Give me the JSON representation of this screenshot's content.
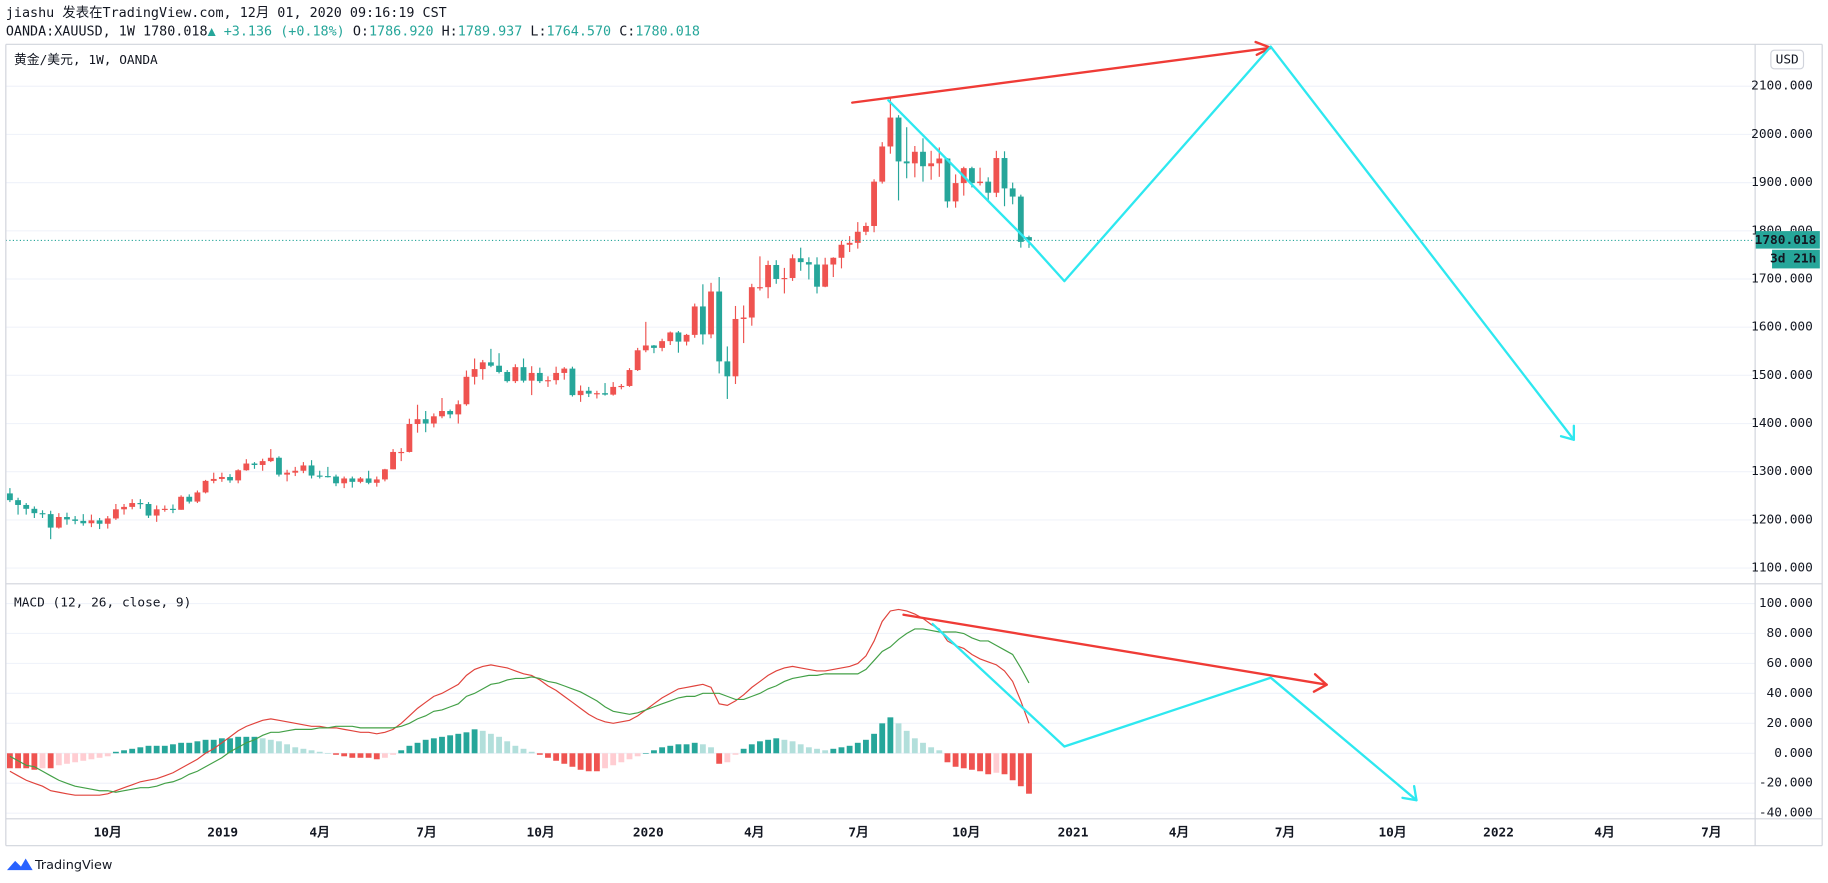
{
  "header": {
    "byline": "jiashu 发表在TradingView.com, 12月 01, 2020 09:16:19 CST",
    "quote": {
      "symbol": "OANDA:XAUUSD, 1W",
      "last": "1780.018",
      "change": "▲ +3.136 (+0.18%)",
      "ohlc": [
        {
          "label": "O:",
          "value": "1786.920"
        },
        {
          "label": "H:",
          "value": "1789.937"
        },
        {
          "label": "L:",
          "value": "1764.570"
        },
        {
          "label": "C:",
          "value": "1780.018"
        }
      ]
    },
    "brand": "TradingView"
  },
  "chart_data": [
    {
      "type": "candlestick",
      "title": "黄金/美元, 1W, OANDA",
      "currency": "USD",
      "countdown": "3d 21h",
      "up_color": "#ef5350",
      "down_color": "#26a69a",
      "grid": true,
      "xlim": [
        -0.5,
        214
      ],
      "ylim": [
        1071,
        2187
      ],
      "yticks": [
        {
          "value": 1100,
          "label": "1100.000"
        },
        {
          "value": 1200,
          "label": "1200.000"
        },
        {
          "value": 1300,
          "label": "1300.000"
        },
        {
          "value": 1400,
          "label": "1400.000"
        },
        {
          "value": 1500,
          "label": "1500.000"
        },
        {
          "value": 1600,
          "label": "1600.000"
        },
        {
          "value": 1700,
          "label": "1700.000"
        },
        {
          "value": 1800,
          "label": "1800.000"
        },
        {
          "value": 1900,
          "label": "1900.000"
        },
        {
          "value": 2000,
          "label": "2000.000"
        },
        {
          "value": 2100,
          "label": "2100.000"
        }
      ],
      "open": [
        1255,
        1241,
        1231,
        1223,
        1214,
        1212,
        1184,
        1206,
        1201,
        1198,
        1193,
        1199,
        1192,
        1203,
        1222,
        1227,
        1235,
        1233,
        1209,
        1222,
        1223,
        1221,
        1248,
        1238,
        1257,
        1281,
        1285,
        1289,
        1282,
        1303,
        1317,
        1314,
        1322,
        1329,
        1294,
        1298,
        1302,
        1313,
        1292,
        1291,
        1290,
        1276,
        1286,
        1279,
        1286,
        1277,
        1284,
        1305,
        1341,
        1341,
        1399,
        1409,
        1400,
        1415,
        1426,
        1419,
        1440,
        1497,
        1513,
        1527,
        1520,
        1507,
        1488,
        1517,
        1489,
        1505,
        1488,
        1490,
        1505,
        1514,
        1459,
        1468,
        1462,
        1463,
        1460,
        1476,
        1478,
        1511,
        1552,
        1562,
        1557,
        1571,
        1589,
        1570,
        1584,
        1643,
        1585,
        1674,
        1529,
        1498,
        1617,
        1620,
        1683,
        1683,
        1729,
        1700,
        1702,
        1743,
        1735,
        1730,
        1684,
        1730,
        1744,
        1771,
        1775,
        1798,
        1810,
        1902,
        1975,
        2035,
        1944,
        1940,
        1964,
        1934,
        1940,
        1950,
        1861,
        1899,
        1930,
        1899,
        1902,
        1879,
        1951,
        1888,
        1871,
        1786.92
      ],
      "high": [
        1266,
        1246,
        1235,
        1228,
        1220,
        1219,
        1214,
        1215,
        1208,
        1212,
        1211,
        1204,
        1208,
        1233,
        1233,
        1243,
        1243,
        1237,
        1230,
        1230,
        1232,
        1251,
        1253,
        1261,
        1283,
        1298,
        1298,
        1295,
        1305,
        1326,
        1320,
        1327,
        1347,
        1332,
        1304,
        1310,
        1320,
        1324,
        1302,
        1310,
        1294,
        1290,
        1290,
        1289,
        1302,
        1290,
        1306,
        1347,
        1349,
        1410,
        1439,
        1426,
        1421,
        1453,
        1429,
        1448,
        1510,
        1535,
        1532,
        1555,
        1546,
        1511,
        1523,
        1535,
        1519,
        1516,
        1498,
        1518,
        1517,
        1518,
        1479,
        1476,
        1468,
        1484,
        1486,
        1482,
        1515,
        1557,
        1611,
        1563,
        1576,
        1591,
        1592,
        1586,
        1649,
        1689,
        1692,
        1704,
        1560,
        1644,
        1645,
        1690,
        1747,
        1738,
        1739,
        1723,
        1751,
        1765,
        1745,
        1745,
        1744,
        1745,
        1779,
        1789,
        1818,
        1817,
        1907,
        1984,
        2075,
        2040,
        2015,
        1976,
        1992,
        1966,
        1973,
        1951,
        1917,
        1933,
        1933,
        1931,
        1911,
        1966,
        1965,
        1900,
        1875,
        1789.937
      ],
      "low": [
        1237,
        1211,
        1211,
        1204,
        1204,
        1160,
        1182,
        1190,
        1191,
        1188,
        1185,
        1181,
        1182,
        1200,
        1211,
        1222,
        1223,
        1204,
        1196,
        1217,
        1214,
        1221,
        1234,
        1235,
        1255,
        1276,
        1279,
        1277,
        1276,
        1302,
        1306,
        1302,
        1320,
        1290,
        1280,
        1291,
        1297,
        1286,
        1286,
        1288,
        1270,
        1266,
        1267,
        1276,
        1274,
        1269,
        1280,
        1305,
        1322,
        1340,
        1381,
        1382,
        1392,
        1411,
        1411,
        1400,
        1437,
        1481,
        1491,
        1517,
        1504,
        1485,
        1484,
        1485,
        1459,
        1484,
        1476,
        1481,
        1491,
        1456,
        1445,
        1455,
        1452,
        1458,
        1458,
        1471,
        1476,
        1509,
        1548,
        1546,
        1550,
        1563,
        1547,
        1562,
        1578,
        1564,
        1577,
        1504,
        1451,
        1482,
        1567,
        1603,
        1676,
        1660,
        1690,
        1670,
        1696,
        1717,
        1699,
        1670,
        1683,
        1704,
        1722,
        1756,
        1763,
        1791,
        1797,
        1898,
        1960,
        1863,
        1909,
        1911,
        1902,
        1906,
        1912,
        1848,
        1848,
        1873,
        1890,
        1894,
        1860,
        1870,
        1851,
        1855,
        1765,
        1764.57
      ],
      "close": [
        1241,
        1231,
        1223,
        1214,
        1212,
        1184,
        1206,
        1201,
        1198,
        1193,
        1199,
        1192,
        1203,
        1222,
        1227,
        1235,
        1233,
        1209,
        1222,
        1223,
        1221,
        1248,
        1238,
        1257,
        1281,
        1285,
        1289,
        1282,
        1303,
        1317,
        1314,
        1322,
        1329,
        1294,
        1298,
        1302,
        1313,
        1292,
        1291,
        1290,
        1276,
        1286,
        1279,
        1286,
        1277,
        1284,
        1305,
        1341,
        1341,
        1399,
        1409,
        1400,
        1415,
        1426,
        1419,
        1440,
        1497,
        1513,
        1527,
        1520,
        1507,
        1488,
        1517,
        1489,
        1505,
        1488,
        1490,
        1505,
        1514,
        1459,
        1468,
        1462,
        1463,
        1460,
        1476,
        1478,
        1511,
        1552,
        1562,
        1557,
        1571,
        1589,
        1570,
        1584,
        1643,
        1585,
        1674,
        1529,
        1498,
        1617,
        1620,
        1683,
        1683,
        1729,
        1700,
        1702,
        1743,
        1735,
        1730,
        1684,
        1730,
        1744,
        1771,
        1775,
        1798,
        1810,
        1902,
        1975,
        2035,
        1944,
        1940,
        1964,
        1934,
        1940,
        1950,
        1861,
        1899,
        1930,
        1899,
        1902,
        1879,
        1951,
        1888,
        1871,
        1777,
        1780.018
      ]
    },
    {
      "type": "macd",
      "title": "MACD (12, 26, close, 9)",
      "grid": true,
      "macd_color": "#e0433c",
      "signal_color": "#43a047",
      "hist_colors": {
        "pos_rising": "#26a69a",
        "pos_falling": "#b2dfdb",
        "neg_falling": "#ef5350",
        "neg_rising": "#ffcdd2"
      },
      "xlim": [
        -0.5,
        214
      ],
      "xticks": [
        {
          "value": 12.0,
          "label": "10月"
        },
        {
          "value": 26.1,
          "label": "2019"
        },
        {
          "value": 38.0,
          "label": "4月"
        },
        {
          "value": 51.1,
          "label": "7月"
        },
        {
          "value": 65.1,
          "label": "10月"
        },
        {
          "value": 78.3,
          "label": "2020"
        },
        {
          "value": 91.3,
          "label": "4月"
        },
        {
          "value": 104.1,
          "label": "7月"
        },
        {
          "value": 117.3,
          "label": "10月"
        },
        {
          "value": 130.4,
          "label": "2021"
        },
        {
          "value": 143.4,
          "label": "4月"
        },
        {
          "value": 156.4,
          "label": "7月"
        },
        {
          "value": 169.6,
          "label": "10月"
        },
        {
          "value": 182.6,
          "label": "2022"
        },
        {
          "value": 195.6,
          "label": "4月"
        },
        {
          "value": 208.7,
          "label": "7月"
        }
      ],
      "ylim": [
        -43,
        112
      ],
      "yticks": [
        {
          "value": -40,
          "label": "-40.000"
        },
        {
          "value": -20,
          "label": "-20.000"
        },
        {
          "value": 0,
          "label": "0.000"
        },
        {
          "value": 20,
          "label": "20.000"
        },
        {
          "value": 40,
          "label": "40.000"
        },
        {
          "value": 60,
          "label": "60.000"
        },
        {
          "value": 80,
          "label": "80.000"
        },
        {
          "value": 100,
          "label": "100.000"
        }
      ],
      "histogram": [
        -10,
        -10,
        -10,
        -11,
        -10,
        -10,
        -8,
        -7,
        -6,
        -5,
        -4,
        -3,
        -2,
        1,
        2,
        3,
        4,
        5,
        5,
        5,
        6,
        7,
        7,
        8,
        9,
        9,
        10,
        10,
        11,
        11,
        11,
        10,
        9,
        8,
        6,
        4,
        3,
        2,
        1,
        0,
        -1,
        -2,
        -3,
        -3,
        -3,
        -4,
        -3,
        -1,
        2,
        5,
        7,
        9,
        10,
        11,
        12,
        13,
        14,
        16,
        15,
        13,
        11,
        8,
        5,
        3,
        1,
        -1,
        -3,
        -5,
        -7,
        -9,
        -11,
        -12,
        -12,
        -10,
        -8,
        -6,
        -4,
        -2,
        0,
        2,
        4,
        5,
        6,
        6,
        7,
        6,
        4,
        -7,
        -6,
        -1,
        3,
        6,
        8,
        9,
        10,
        9,
        8,
        6,
        4,
        3,
        2,
        3,
        4,
        5,
        7,
        9,
        13,
        20,
        24,
        20,
        15,
        10,
        7,
        4,
        2,
        -6,
        -9,
        -10,
        -11,
        -12,
        -14,
        -13,
        -14,
        -18,
        -22,
        -27
      ],
      "macd_line": [
        -12,
        -15,
        -18,
        -20,
        -22,
        -25,
        -26,
        -27,
        -28,
        -28,
        -28,
        -28,
        -27,
        -25,
        -23,
        -21,
        -19,
        -18,
        -17,
        -15,
        -13,
        -10,
        -7,
        -4,
        0,
        3,
        7,
        11,
        15,
        18,
        20,
        22,
        23,
        22,
        21,
        20,
        19,
        18,
        18,
        17,
        17,
        16,
        15,
        14,
        14,
        13,
        14,
        16,
        20,
        25,
        30,
        34,
        38,
        40,
        43,
        46,
        52,
        56,
        58,
        59,
        58,
        57,
        55,
        53,
        52,
        49,
        45,
        42,
        38,
        34,
        30,
        26,
        23,
        21,
        20,
        21,
        22,
        25,
        29,
        33,
        37,
        40,
        43,
        44,
        45,
        46,
        44,
        33,
        32,
        35,
        39,
        44,
        48,
        52,
        55,
        57,
        58,
        57,
        56,
        55,
        55,
        56,
        57,
        58,
        60,
        65,
        75,
        88,
        95,
        96,
        95,
        93,
        90,
        86,
        83,
        75,
        72,
        70,
        66,
        63,
        61,
        59,
        55,
        48,
        35,
        20
      ],
      "signal_line": [
        -2,
        -5,
        -8,
        -9,
        -12,
        -15,
        -18,
        -20,
        -22,
        -23,
        -24,
        -25,
        -25,
        -26,
        -25,
        -24,
        -23,
        -23,
        -22,
        -20,
        -19,
        -17,
        -14,
        -12,
        -9,
        -6,
        -3,
        1,
        4,
        7,
        9,
        12,
        14,
        14,
        15,
        16,
        16,
        16,
        17,
        17,
        18,
        18,
        18,
        17,
        17,
        17,
        17,
        17,
        18,
        20,
        23,
        25,
        28,
        29,
        31,
        33,
        38,
        40,
        43,
        46,
        47,
        49,
        50,
        50,
        51,
        50,
        48,
        47,
        45,
        43,
        41,
        38,
        35,
        31,
        28,
        27,
        26,
        27,
        29,
        31,
        33,
        35,
        37,
        38,
        38,
        40,
        40,
        40,
        38,
        36,
        36,
        38,
        40,
        43,
        45,
        48,
        50,
        51,
        52,
        52,
        53,
        53,
        53,
        53,
        53,
        56,
        62,
        68,
        71,
        76,
        80,
        83,
        83,
        82,
        81,
        81,
        81,
        80,
        77,
        75,
        75,
        72,
        69,
        66,
        57,
        47
      ]
    }
  ]
}
